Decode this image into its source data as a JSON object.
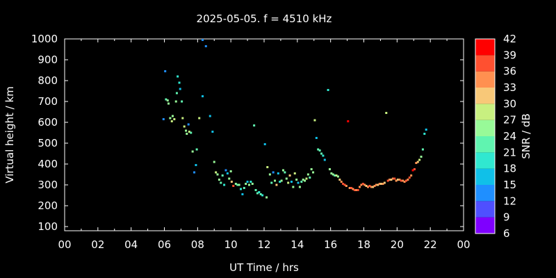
{
  "chart_data": {
    "type": "scatter",
    "title": "2025-05-05. f = 4510 kHz",
    "xlabel": "UT Time / hrs",
    "ylabel": "Virtual height / km",
    "xlim": [
      0,
      24
    ],
    "ylim": [
      80,
      1000
    ],
    "x_ticks": [
      "00",
      "02",
      "04",
      "06",
      "08",
      "10",
      "12",
      "14",
      "16",
      "18",
      "20",
      "22",
      "00"
    ],
    "x_tick_values": [
      0,
      2,
      4,
      6,
      8,
      10,
      12,
      14,
      16,
      18,
      20,
      22,
      24
    ],
    "y_ticks": [
      100,
      200,
      300,
      400,
      500,
      600,
      700,
      800,
      900,
      1000
    ],
    "grid": false,
    "colorbar": {
      "label": "SNR / dB",
      "min": 6,
      "max": 42,
      "ticks": [
        6,
        9,
        12,
        15,
        18,
        21,
        24,
        27,
        30,
        33,
        36,
        39,
        42
      ],
      "colors": [
        "#7f00ff",
        "#4f4fff",
        "#1f8fff",
        "#10c0e8",
        "#30e8d0",
        "#60f4b0",
        "#98fa98",
        "#c8f080",
        "#f8c878",
        "#ff9050",
        "#ff5030",
        "#ff0000"
      ]
    },
    "points": [
      {
        "x": 5.95,
        "y": 615,
        "snr": 12
      },
      {
        "x": 6.05,
        "y": 845,
        "snr": 12
      },
      {
        "x": 6.1,
        "y": 710,
        "snr": 21
      },
      {
        "x": 6.2,
        "y": 705,
        "snr": 24
      },
      {
        "x": 6.25,
        "y": 690,
        "snr": 24
      },
      {
        "x": 6.35,
        "y": 620,
        "snr": 24
      },
      {
        "x": 6.45,
        "y": 605,
        "snr": 27
      },
      {
        "x": 6.5,
        "y": 630,
        "snr": 24
      },
      {
        "x": 6.6,
        "y": 615,
        "snr": 27
      },
      {
        "x": 6.7,
        "y": 700,
        "snr": 24
      },
      {
        "x": 6.75,
        "y": 740,
        "snr": 21
      },
      {
        "x": 6.8,
        "y": 820,
        "snr": 18
      },
      {
        "x": 6.9,
        "y": 790,
        "snr": 18
      },
      {
        "x": 6.95,
        "y": 760,
        "snr": 15
      },
      {
        "x": 7.05,
        "y": 700,
        "snr": 21
      },
      {
        "x": 7.1,
        "y": 620,
        "snr": 27
      },
      {
        "x": 7.2,
        "y": 580,
        "snr": 27
      },
      {
        "x": 7.3,
        "y": 560,
        "snr": 24
      },
      {
        "x": 7.35,
        "y": 545,
        "snr": 24
      },
      {
        "x": 7.45,
        "y": 590,
        "snr": 12
      },
      {
        "x": 7.5,
        "y": 555,
        "snr": 27
      },
      {
        "x": 7.6,
        "y": 550,
        "snr": 21
      },
      {
        "x": 7.7,
        "y": 460,
        "snr": 24
      },
      {
        "x": 7.8,
        "y": 360,
        "snr": 12
      },
      {
        "x": 7.9,
        "y": 395,
        "snr": 15
      },
      {
        "x": 7.95,
        "y": 470,
        "snr": 21
      },
      {
        "x": 8.1,
        "y": 620,
        "snr": 27
      },
      {
        "x": 8.3,
        "y": 725,
        "snr": 15
      },
      {
        "x": 8.3,
        "y": 995,
        "snr": 12
      },
      {
        "x": 8.5,
        "y": 965,
        "snr": 12
      },
      {
        "x": 8.75,
        "y": 630,
        "snr": 15
      },
      {
        "x": 8.9,
        "y": 555,
        "snr": 15
      },
      {
        "x": 9.0,
        "y": 410,
        "snr": 24
      },
      {
        "x": 9.1,
        "y": 360,
        "snr": 27
      },
      {
        "x": 9.2,
        "y": 350,
        "snr": 24
      },
      {
        "x": 9.3,
        "y": 325,
        "snr": 24
      },
      {
        "x": 9.4,
        "y": 310,
        "snr": 21
      },
      {
        "x": 9.5,
        "y": 345,
        "snr": 21
      },
      {
        "x": 9.6,
        "y": 300,
        "snr": 18
      },
      {
        "x": 9.7,
        "y": 370,
        "snr": 12
      },
      {
        "x": 9.8,
        "y": 355,
        "snr": 15
      },
      {
        "x": 9.9,
        "y": 330,
        "snr": 24
      },
      {
        "x": 10.0,
        "y": 365,
        "snr": 24
      },
      {
        "x": 10.05,
        "y": 315,
        "snr": 30
      },
      {
        "x": 10.15,
        "y": 295,
        "snr": 36
      },
      {
        "x": 10.3,
        "y": 305,
        "snr": 24
      },
      {
        "x": 10.4,
        "y": 300,
        "snr": 21
      },
      {
        "x": 10.5,
        "y": 300,
        "snr": 24
      },
      {
        "x": 10.6,
        "y": 280,
        "snr": 18
      },
      {
        "x": 10.7,
        "y": 255,
        "snr": 15
      },
      {
        "x": 10.8,
        "y": 285,
        "snr": 21
      },
      {
        "x": 10.9,
        "y": 305,
        "snr": 24
      },
      {
        "x": 11.0,
        "y": 315,
        "snr": 15
      },
      {
        "x": 11.1,
        "y": 300,
        "snr": 24
      },
      {
        "x": 11.2,
        "y": 315,
        "snr": 18
      },
      {
        "x": 11.3,
        "y": 305,
        "snr": 24
      },
      {
        "x": 11.4,
        "y": 585,
        "snr": 21
      },
      {
        "x": 11.5,
        "y": 275,
        "snr": 21
      },
      {
        "x": 11.6,
        "y": 260,
        "snr": 21
      },
      {
        "x": 11.7,
        "y": 265,
        "snr": 18
      },
      {
        "x": 11.8,
        "y": 255,
        "snr": 21
      },
      {
        "x": 11.9,
        "y": 250,
        "snr": 18
      },
      {
        "x": 12.05,
        "y": 495,
        "snr": 15
      },
      {
        "x": 12.15,
        "y": 240,
        "snr": 24
      },
      {
        "x": 12.2,
        "y": 385,
        "snr": 27
      },
      {
        "x": 12.35,
        "y": 350,
        "snr": 24
      },
      {
        "x": 12.45,
        "y": 310,
        "snr": 21
      },
      {
        "x": 12.55,
        "y": 360,
        "snr": 12
      },
      {
        "x": 12.65,
        "y": 320,
        "snr": 24
      },
      {
        "x": 12.75,
        "y": 300,
        "snr": 30
      },
      {
        "x": 12.85,
        "y": 355,
        "snr": 15
      },
      {
        "x": 12.95,
        "y": 315,
        "snr": 18
      },
      {
        "x": 13.05,
        "y": 320,
        "snr": 24
      },
      {
        "x": 13.15,
        "y": 370,
        "snr": 24
      },
      {
        "x": 13.25,
        "y": 360,
        "snr": 21
      },
      {
        "x": 13.35,
        "y": 330,
        "snr": 24
      },
      {
        "x": 13.45,
        "y": 310,
        "snr": 27
      },
      {
        "x": 13.55,
        "y": 345,
        "snr": 30
      },
      {
        "x": 13.65,
        "y": 315,
        "snr": 15
      },
      {
        "x": 13.75,
        "y": 290,
        "snr": 24
      },
      {
        "x": 13.85,
        "y": 355,
        "snr": 27
      },
      {
        "x": 13.95,
        "y": 325,
        "snr": 24
      },
      {
        "x": 14.05,
        "y": 310,
        "snr": 15
      },
      {
        "x": 14.15,
        "y": 290,
        "snr": 24
      },
      {
        "x": 14.25,
        "y": 315,
        "snr": 21
      },
      {
        "x": 14.35,
        "y": 325,
        "snr": 24
      },
      {
        "x": 14.45,
        "y": 320,
        "snr": 24
      },
      {
        "x": 14.55,
        "y": 330,
        "snr": 27
      },
      {
        "x": 14.65,
        "y": 350,
        "snr": 24
      },
      {
        "x": 14.75,
        "y": 335,
        "snr": 21
      },
      {
        "x": 14.85,
        "y": 375,
        "snr": 24
      },
      {
        "x": 14.95,
        "y": 360,
        "snr": 24
      },
      {
        "x": 15.05,
        "y": 610,
        "snr": 27
      },
      {
        "x": 15.15,
        "y": 525,
        "snr": 15
      },
      {
        "x": 15.25,
        "y": 470,
        "snr": 21
      },
      {
        "x": 15.35,
        "y": 465,
        "snr": 21
      },
      {
        "x": 15.45,
        "y": 450,
        "snr": 21
      },
      {
        "x": 15.55,
        "y": 440,
        "snr": 18
      },
      {
        "x": 15.65,
        "y": 420,
        "snr": 15
      },
      {
        "x": 15.85,
        "y": 755,
        "snr": 18
      },
      {
        "x": 15.95,
        "y": 375,
        "snr": 24
      },
      {
        "x": 16.05,
        "y": 355,
        "snr": 24
      },
      {
        "x": 16.15,
        "y": 350,
        "snr": 24
      },
      {
        "x": 16.25,
        "y": 345,
        "snr": 21
      },
      {
        "x": 16.35,
        "y": 345,
        "snr": 27
      },
      {
        "x": 16.45,
        "y": 340,
        "snr": 24
      },
      {
        "x": 16.55,
        "y": 325,
        "snr": 30
      },
      {
        "x": 16.65,
        "y": 315,
        "snr": 33
      },
      {
        "x": 16.75,
        "y": 305,
        "snr": 36
      },
      {
        "x": 16.85,
        "y": 300,
        "snr": 36
      },
      {
        "x": 16.95,
        "y": 295,
        "snr": 33
      },
      {
        "x": 17.05,
        "y": 605,
        "snr": 39
      },
      {
        "x": 17.15,
        "y": 285,
        "snr": 33
      },
      {
        "x": 17.25,
        "y": 285,
        "snr": 36
      },
      {
        "x": 17.35,
        "y": 280,
        "snr": 33
      },
      {
        "x": 17.45,
        "y": 275,
        "snr": 36
      },
      {
        "x": 17.55,
        "y": 275,
        "snr": 33
      },
      {
        "x": 17.65,
        "y": 275,
        "snr": 36
      },
      {
        "x": 17.75,
        "y": 290,
        "snr": 33
      },
      {
        "x": 17.85,
        "y": 300,
        "snr": 33
      },
      {
        "x": 17.95,
        "y": 305,
        "snr": 36
      },
      {
        "x": 18.05,
        "y": 300,
        "snr": 33
      },
      {
        "x": 18.15,
        "y": 295,
        "snr": 30
      },
      {
        "x": 18.25,
        "y": 290,
        "snr": 33
      },
      {
        "x": 18.35,
        "y": 295,
        "snr": 36
      },
      {
        "x": 18.45,
        "y": 290,
        "snr": 33
      },
      {
        "x": 18.55,
        "y": 290,
        "snr": 30
      },
      {
        "x": 18.65,
        "y": 295,
        "snr": 33
      },
      {
        "x": 18.75,
        "y": 300,
        "snr": 33
      },
      {
        "x": 18.85,
        "y": 300,
        "snr": 30
      },
      {
        "x": 18.95,
        "y": 305,
        "snr": 33
      },
      {
        "x": 19.05,
        "y": 305,
        "snr": 30
      },
      {
        "x": 19.15,
        "y": 305,
        "snr": 33
      },
      {
        "x": 19.25,
        "y": 310,
        "snr": 30
      },
      {
        "x": 19.35,
        "y": 645,
        "snr": 27
      },
      {
        "x": 19.45,
        "y": 320,
        "snr": 36
      },
      {
        "x": 19.55,
        "y": 325,
        "snr": 33
      },
      {
        "x": 19.65,
        "y": 325,
        "snr": 30
      },
      {
        "x": 19.75,
        "y": 330,
        "snr": 33
      },
      {
        "x": 19.85,
        "y": 330,
        "snr": 36
      },
      {
        "x": 19.95,
        "y": 320,
        "snr": 33
      },
      {
        "x": 20.05,
        "y": 325,
        "snr": 30
      },
      {
        "x": 20.15,
        "y": 325,
        "snr": 33
      },
      {
        "x": 20.25,
        "y": 320,
        "snr": 36
      },
      {
        "x": 20.35,
        "y": 320,
        "snr": 33
      },
      {
        "x": 20.45,
        "y": 315,
        "snr": 33
      },
      {
        "x": 20.55,
        "y": 320,
        "snr": 36
      },
      {
        "x": 20.65,
        "y": 325,
        "snr": 33
      },
      {
        "x": 20.75,
        "y": 335,
        "snr": 36
      },
      {
        "x": 20.85,
        "y": 345,
        "snr": 33
      },
      {
        "x": 20.95,
        "y": 370,
        "snr": 39
      },
      {
        "x": 21.05,
        "y": 375,
        "snr": 36
      },
      {
        "x": 21.15,
        "y": 405,
        "snr": 33
      },
      {
        "x": 21.25,
        "y": 410,
        "snr": 30
      },
      {
        "x": 21.35,
        "y": 420,
        "snr": 27
      },
      {
        "x": 21.45,
        "y": 435,
        "snr": 24
      },
      {
        "x": 21.55,
        "y": 470,
        "snr": 21
      },
      {
        "x": 21.65,
        "y": 545,
        "snr": 18
      },
      {
        "x": 21.75,
        "y": 565,
        "snr": 15
      }
    ]
  }
}
